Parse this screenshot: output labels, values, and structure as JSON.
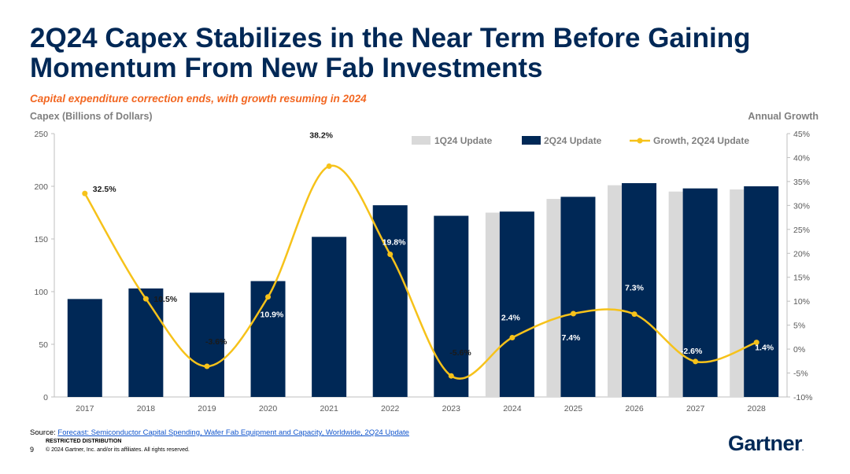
{
  "title": "2Q24 Capex Stabilizes in the Near Term Before Gaining Momentum From New Fab Investments",
  "subtitle": "Capital expenditure correction ends, with growth resuming in 2024",
  "colors": {
    "navy": "#002856",
    "lightgray": "#d9d9d9",
    "gold": "#f6c21a",
    "orange": "#f26722",
    "axis": "#7f7f7f"
  },
  "chart_data": {
    "type": "bar",
    "categories": [
      "2017",
      "2018",
      "2019",
      "2020",
      "2021",
      "2022",
      "2023",
      "2024",
      "2025",
      "2026",
      "2027",
      "2028"
    ],
    "series": [
      {
        "name": "1Q24 Update",
        "kind": "bar",
        "values": [
          null,
          null,
          null,
          null,
          null,
          null,
          null,
          175,
          188,
          201,
          195,
          197
        ]
      },
      {
        "name": "2Q24 Update",
        "kind": "bar",
        "values": [
          93,
          103,
          99,
          110,
          152,
          182,
          172,
          176,
          190,
          203,
          198,
          200
        ]
      },
      {
        "name": "Growth, 2Q24 Update",
        "kind": "line",
        "axis": "right",
        "values": [
          32.5,
          10.5,
          -3.6,
          10.9,
          38.2,
          19.8,
          -5.6,
          2.4,
          7.4,
          7.3,
          -2.6,
          1.4
        ]
      }
    ],
    "point_labels": [
      "32.5%",
      "10.5%",
      "-3.6%",
      "10.9%",
      "38.2%",
      "19.8%",
      "-5.6%",
      "2.4%",
      "7.4%",
      "7.3%",
      "-2.6%",
      "1.4%"
    ],
    "ylabel": "Capex (Billions of Dollars)",
    "y2label": "Annual Growth",
    "ylim": [
      0,
      250
    ],
    "y2lim": [
      -10,
      45
    ],
    "yticks": [
      "0",
      "50",
      "100",
      "150",
      "200",
      "250"
    ],
    "y2ticks": [
      "-10%",
      "-5%",
      "0%",
      "5%",
      "10%",
      "15%",
      "20%",
      "25%",
      "30%",
      "35%",
      "40%",
      "45%"
    ],
    "legend": [
      "1Q24 Update",
      "2Q24 Update",
      "Growth, 2Q24 Update"
    ],
    "legend_position": "top-right"
  },
  "footer": {
    "source_prefix": "Source: ",
    "source_link": "Forecast: Semiconductor Capital Spending, Wafer Fab Equipment and Capacity, Worldwide, 2Q24 Update",
    "restricted": "RESTRICTED DISTRIBUTION",
    "page": "9",
    "copyright": "© 2024 Gartner, Inc. and/or its affiliates. All rights reserved."
  },
  "logo": {
    "text": "Gartner",
    "mark": "."
  }
}
